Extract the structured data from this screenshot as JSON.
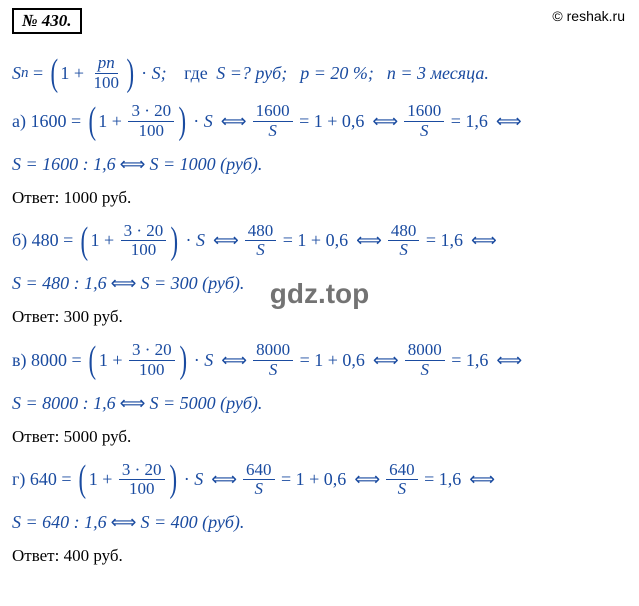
{
  "badge": "№ 430.",
  "copyright": "© reshak.ru",
  "watermark": "gdz.top",
  "text_color": "#1a4ba0",
  "formula_intro": {
    "lhs": "S",
    "sub": "n",
    "frac_num": "pn",
    "frac_den": "100",
    "tail": "S;",
    "where": "где",
    "s_eq": "S =? руб;",
    "p_eq": "p = 20 %;",
    "n_eq": "n = 3 месяца."
  },
  "parts": [
    {
      "label": "а)",
      "value": "1600",
      "frac_num": "3 · 20",
      "frac_den": "100",
      "step1_lhs_num": "1600",
      "step1_lhs_den": "S",
      "step1_rhs": "1 + 0,6",
      "step2_lhs_num": "1600",
      "step2_lhs_den": "S",
      "step2_rhs": "1,6",
      "line2_a": "S = 1600 : 1,6",
      "line2_b": "S = 1000 (руб).",
      "answer": "Ответ: 1000 руб."
    },
    {
      "label": "б)",
      "value": "480",
      "frac_num": "3 · 20",
      "frac_den": "100",
      "step1_lhs_num": "480",
      "step1_lhs_den": "S",
      "step1_rhs": "1 + 0,6",
      "step2_lhs_num": "480",
      "step2_lhs_den": "S",
      "step2_rhs": "1,6",
      "line2_a": "S = 480 : 1,6",
      "line2_b": "S = 300 (руб).",
      "answer": "Ответ: 300 руб."
    },
    {
      "label": "в)",
      "value": "8000",
      "frac_num": "3 · 20",
      "frac_den": "100",
      "step1_lhs_num": "8000",
      "step1_lhs_den": "S",
      "step1_rhs": "1 + 0,6",
      "step2_lhs_num": "8000",
      "step2_lhs_den": "S",
      "step2_rhs": "1,6",
      "line2_a": "S = 8000 : 1,6",
      "line2_b": "S = 5000 (руб).",
      "answer": "Ответ: 5000 руб."
    },
    {
      "label": "г)",
      "value": "640",
      "frac_num": "3 · 20",
      "frac_den": "100",
      "step1_lhs_num": "640",
      "step1_lhs_den": "S",
      "step1_rhs": "1 + 0,6",
      "step2_lhs_num": "640",
      "step2_lhs_den": "S",
      "step2_rhs": "1,6",
      "line2_a": "S = 640 : 1,6",
      "line2_b": "S = 400 (руб).",
      "answer": "Ответ: 400 руб."
    }
  ]
}
